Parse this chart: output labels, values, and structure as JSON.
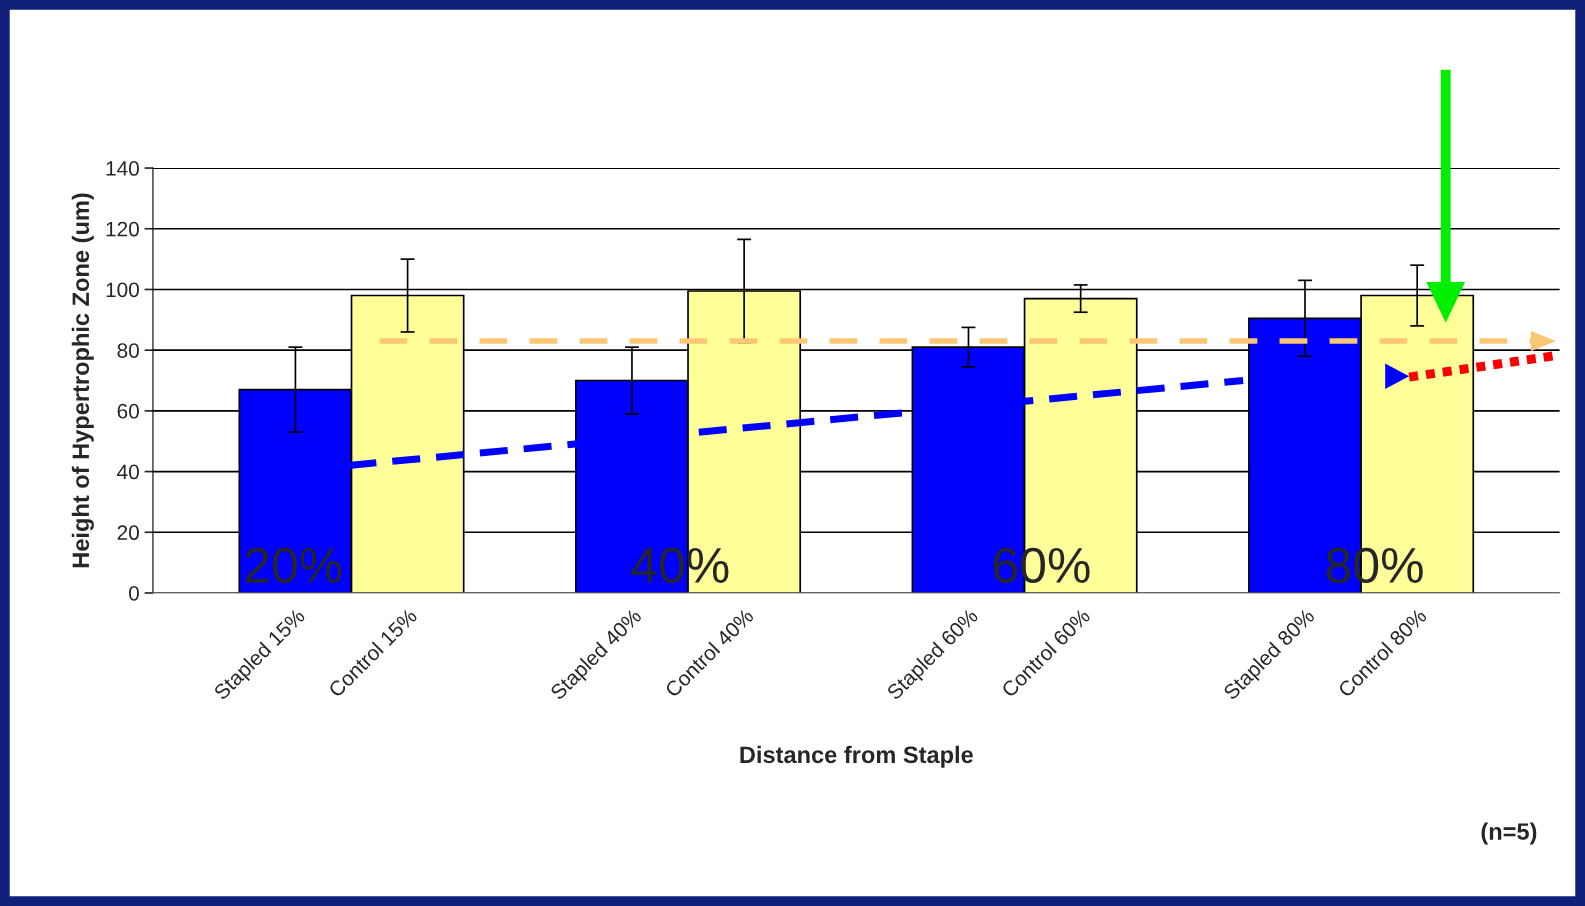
{
  "chart_data": {
    "type": "bar",
    "xlabel": "Distance from Staple",
    "ylabel": "Height of Hypertrophic Zone (um)",
    "categories": [
      "Stapled 15%",
      "Control 15%",
      null,
      "Stapled 40%",
      "Control 40%",
      null,
      "Stapled 60%",
      "Control 60%",
      null,
      "Stapled 80%",
      "Control 80%"
    ],
    "values": [
      67,
      98,
      null,
      70,
      99.5,
      null,
      81,
      97,
      null,
      90.5,
      98
    ],
    "colors": [
      "#0000ff",
      "#ffff99",
      null,
      "#0000ff",
      "#ffff99",
      null,
      "#0000ff",
      "#ffff99",
      null,
      "#0000ff",
      "#ffff99"
    ],
    "errors": [
      14,
      12,
      null,
      11,
      17,
      null,
      6.5,
      4.5,
      null,
      12.5,
      10
    ],
    "ylim": [
      0,
      140
    ],
    "yticks": [
      0,
      20,
      40,
      60,
      80,
      100,
      120,
      140
    ],
    "grid": "y",
    "legend": false,
    "ref_lines": [
      {
        "axis": "y",
        "value": 83,
        "color": "#fac775",
        "line_style": "dashed"
      }
    ],
    "annotations": [
      "20%",
      "40%",
      "60%",
      "80%",
      "(n=5)"
    ]
  }
}
